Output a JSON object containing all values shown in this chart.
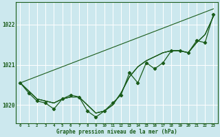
{
  "background_color": "#cce8ee",
  "plot_bg_color": "#cce8ee",
  "grid_color": "#ffffff",
  "line_color": "#1a5c1a",
  "xlabel": "Graphe pression niveau de la mer (hPa)",
  "xlim": [
    -0.5,
    23.5
  ],
  "ylim": [
    1019.55,
    1022.55
  ],
  "yticks": [
    1020,
    1021,
    1022
  ],
  "xticks": [
    0,
    1,
    2,
    3,
    4,
    5,
    6,
    7,
    8,
    9,
    10,
    11,
    12,
    13,
    14,
    15,
    16,
    17,
    18,
    19,
    20,
    21,
    22,
    23
  ],
  "straight_line": [
    1020.55,
    1020.63,
    1020.71,
    1020.79,
    1020.87,
    1020.95,
    1021.03,
    1021.11,
    1021.19,
    1021.27,
    1021.35,
    1021.43,
    1021.51,
    1021.59,
    1021.67,
    1021.75,
    1021.83,
    1021.91,
    1021.99,
    1022.07,
    1022.15,
    1022.23,
    1022.31,
    1022.39
  ],
  "series2": [
    1020.55,
    1020.35,
    1020.15,
    1020.1,
    1020.05,
    1020.15,
    1020.2,
    1020.2,
    1020.0,
    1019.8,
    1019.85,
    1020.0,
    1020.3,
    1020.7,
    1020.95,
    1021.1,
    1021.2,
    1021.3,
    1021.35,
    1021.35,
    1021.3,
    1021.55,
    1021.75,
    1022.2
  ],
  "series3": [
    1020.55,
    1020.35,
    1020.15,
    1020.1,
    1020.05,
    1020.15,
    1020.2,
    1020.2,
    1020.0,
    1019.8,
    1019.85,
    1020.0,
    1020.3,
    1020.7,
    1020.95,
    1021.1,
    1021.2,
    1021.3,
    1021.35,
    1021.35,
    1021.3,
    1021.55,
    1021.75,
    1022.2
  ],
  "series4": [
    1020.55,
    1020.35,
    1020.15,
    1020.1,
    1020.05,
    1020.15,
    1020.2,
    1020.2,
    1020.0,
    1019.8,
    1019.85,
    1020.0,
    1020.3,
    1020.7,
    1020.95,
    1021.1,
    1021.2,
    1021.3,
    1021.35,
    1021.35,
    1021.3,
    1021.55,
    1021.75,
    1022.2
  ],
  "marker_series": [
    1020.55,
    1020.3,
    1020.1,
    1020.05,
    1019.9,
    1020.15,
    1020.25,
    1020.2,
    1019.85,
    1019.7,
    1019.85,
    1020.05,
    1020.25,
    1020.8,
    1020.55,
    1021.05,
    1020.9,
    1021.05,
    1021.35,
    1021.35,
    1021.3,
    1021.6,
    1021.55,
    1022.25
  ]
}
